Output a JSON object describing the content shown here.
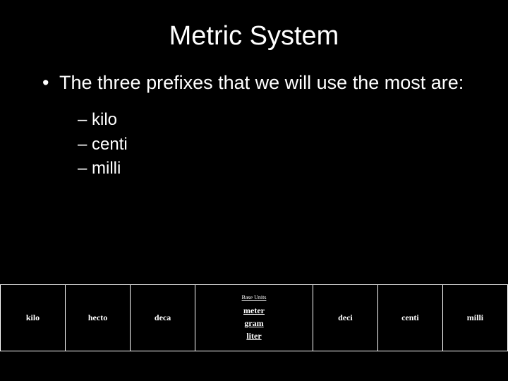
{
  "title": "Metric System",
  "bullet": "The three prefixes that we will use the most are:",
  "subitems": [
    "kilo",
    "centi",
    "milli"
  ],
  "table": {
    "cells": [
      "kilo",
      "hecto",
      "deca",
      "deci",
      "centi",
      "milli"
    ],
    "base_header": "Base Units",
    "base_units": [
      "meter",
      "gram",
      "liter"
    ]
  },
  "colors": {
    "background": "#000000",
    "text": "#ffffff",
    "border": "#ffffff"
  }
}
